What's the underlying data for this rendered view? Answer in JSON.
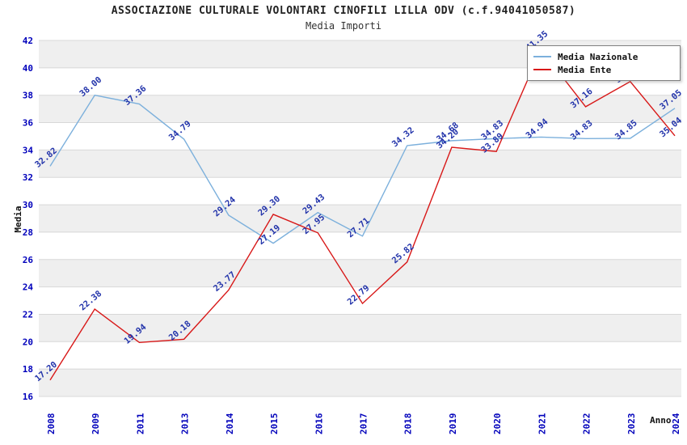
{
  "header": {
    "title": "ASSOCIAZIONE CULTURALE VOLONTARI CINOFILI LILLA ODV (c.f.94041050587)",
    "subtitle": "Media Importi"
  },
  "chart_data": {
    "type": "line",
    "title": "ASSOCIAZIONE CULTURALE VOLONTARI CINOFILI LILLA ODV (c.f.94041050587)",
    "subtitle": "Media Importi",
    "xlabel": "Anno",
    "ylabel": "Media",
    "categories": [
      "2008",
      "2009",
      "2011",
      "2013",
      "2014",
      "2015",
      "2016",
      "2017",
      "2018",
      "2019",
      "2020",
      "2021",
      "2022",
      "2023",
      "2024"
    ],
    "series": [
      {
        "name": "Media Nazionale",
        "color": "#7CB0DC",
        "values": [
          32.82,
          38.0,
          37.36,
          34.79,
          29.24,
          27.19,
          29.43,
          27.71,
          34.32,
          34.68,
          34.83,
          34.94,
          34.83,
          34.85,
          37.05
        ]
      },
      {
        "name": "Media Ente",
        "color": "#D81818",
        "values": [
          17.2,
          22.38,
          19.94,
          20.18,
          23.77,
          29.3,
          27.95,
          22.79,
          25.82,
          34.2,
          33.89,
          41.35,
          37.16,
          39.0,
          35.04
        ]
      }
    ],
    "ylim": [
      16,
      42
    ],
    "ytick_step": 2,
    "grid": true,
    "legend_position": "top-right",
    "label_color": "#2233AA",
    "tick_color": "#0000BB",
    "axis_label_color": "#111111",
    "band_colors": [
      "#EFEFEF",
      "#FFFFFF"
    ],
    "grid_color": "#D8D8D8"
  }
}
